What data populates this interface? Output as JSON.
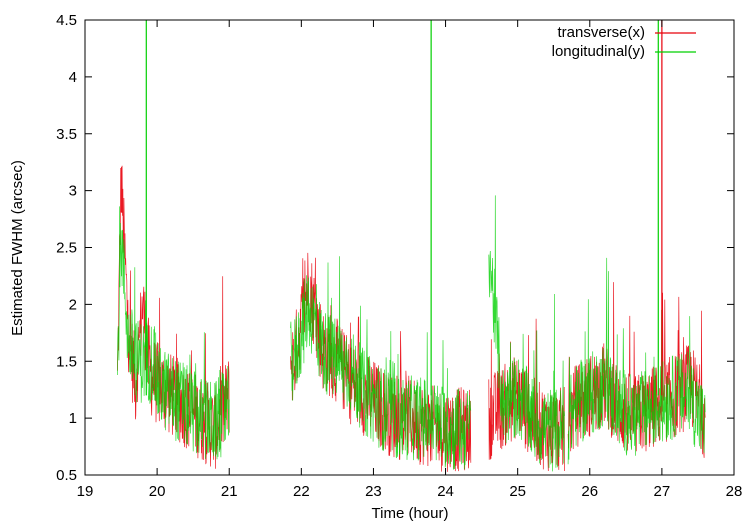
{
  "chart_data": {
    "type": "line",
    "xlabel": "Time (hour)",
    "ylabel": "Estimated FWHM (arcsec)",
    "xlim": [
      19,
      28
    ],
    "ylim": [
      0.5,
      4.5
    ],
    "xticks": [
      "19",
      "20",
      "21",
      "22",
      "23",
      "24",
      "25",
      "26",
      "27",
      "28"
    ],
    "yticks": [
      "0.5",
      "1",
      "1.5",
      "2",
      "2.5",
      "3",
      "3.5",
      "4",
      "4.5"
    ],
    "legend_position": "top-right",
    "grid": false,
    "observing_windows_hours": [
      [
        19.45,
        21.0
      ],
      [
        21.85,
        24.35
      ],
      [
        24.6,
        25.65
      ],
      [
        25.7,
        27.6
      ]
    ],
    "series": [
      {
        "name": "transverse(x)",
        "color": "#e8000b",
        "points": [
          [
            19.45,
            1.3
          ],
          [
            19.5,
            3.1
          ],
          [
            19.6,
            1.8
          ],
          [
            19.7,
            1.3
          ],
          [
            19.8,
            2.0
          ],
          [
            19.9,
            1.4
          ],
          [
            20.0,
            1.3
          ],
          [
            20.2,
            1.2
          ],
          [
            20.4,
            1.1
          ],
          [
            20.6,
            1.0
          ],
          [
            20.8,
            0.9
          ],
          [
            21.0,
            1.2
          ],
          [
            21.9,
            1.5
          ],
          [
            22.1,
            2.2
          ],
          [
            22.3,
            1.6
          ],
          [
            22.5,
            1.5
          ],
          [
            22.7,
            1.3
          ],
          [
            22.9,
            1.2
          ],
          [
            23.1,
            1.1
          ],
          [
            23.3,
            1.0
          ],
          [
            23.5,
            1.0
          ],
          [
            23.7,
            0.95
          ],
          [
            23.8,
            4.5
          ],
          [
            23.9,
            0.9
          ],
          [
            24.1,
            0.9
          ],
          [
            24.35,
            0.9
          ],
          [
            24.6,
            1.0
          ],
          [
            24.8,
            1.1
          ],
          [
            25.0,
            1.2
          ],
          [
            25.2,
            1.0
          ],
          [
            25.4,
            0.9
          ],
          [
            25.65,
            0.9
          ],
          [
            25.8,
            1.1
          ],
          [
            26.0,
            1.2
          ],
          [
            26.2,
            1.3
          ],
          [
            26.4,
            1.1
          ],
          [
            26.6,
            1.0
          ],
          [
            26.9,
            1.1
          ],
          [
            27.0,
            4.5
          ],
          [
            27.2,
            1.2
          ],
          [
            27.4,
            1.3
          ],
          [
            27.6,
            1.0
          ]
        ]
      },
      {
        "name": "longitudinal(y)",
        "color": "#00d000",
        "points": [
          [
            19.45,
            1.4
          ],
          [
            19.5,
            2.6
          ],
          [
            19.6,
            1.7
          ],
          [
            19.7,
            1.5
          ],
          [
            19.85,
            4.5
          ],
          [
            19.95,
            1.5
          ],
          [
            20.0,
            1.3
          ],
          [
            20.2,
            1.2
          ],
          [
            20.4,
            1.1
          ],
          [
            20.6,
            1.0
          ],
          [
            20.8,
            0.95
          ],
          [
            21.0,
            1.1
          ],
          [
            21.9,
            1.5
          ],
          [
            22.1,
            2.0
          ],
          [
            22.3,
            1.6
          ],
          [
            22.5,
            1.5
          ],
          [
            22.7,
            1.4
          ],
          [
            22.9,
            1.2
          ],
          [
            23.1,
            1.1
          ],
          [
            23.3,
            1.0
          ],
          [
            23.5,
            1.0
          ],
          [
            23.7,
            1.0
          ],
          [
            23.8,
            4.5
          ],
          [
            23.9,
            0.95
          ],
          [
            24.1,
            0.9
          ],
          [
            24.35,
            0.9
          ],
          [
            24.6,
            2.5
          ],
          [
            24.8,
            1.1
          ],
          [
            25.0,
            1.2
          ],
          [
            25.2,
            1.0
          ],
          [
            25.4,
            0.9
          ],
          [
            25.65,
            0.9
          ],
          [
            25.8,
            1.1
          ],
          [
            26.0,
            1.2
          ],
          [
            26.2,
            1.3
          ],
          [
            26.4,
            1.1
          ],
          [
            26.6,
            1.0
          ],
          [
            26.95,
            4.5
          ],
          [
            27.2,
            1.2
          ],
          [
            27.4,
            1.2
          ],
          [
            27.6,
            0.9
          ]
        ]
      }
    ],
    "spikes": [
      {
        "series": "longitudinal(y)",
        "x": 19.85,
        "y": 4.5
      },
      {
        "series": "longitudinal(y)",
        "x": 23.8,
        "y": 4.5
      },
      {
        "series": "longitudinal(y)",
        "x": 26.95,
        "y": 4.5
      },
      {
        "series": "transverse(x)",
        "x": 27.0,
        "y": 4.5
      }
    ]
  }
}
